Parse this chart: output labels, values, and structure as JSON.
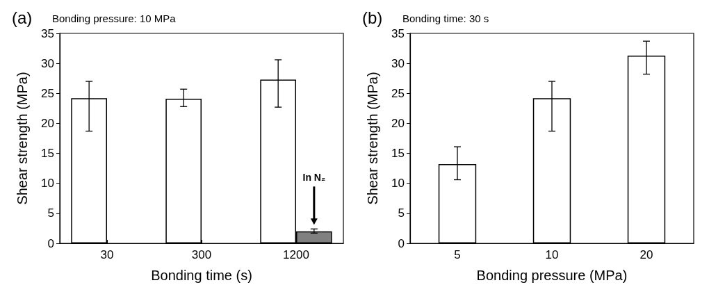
{
  "chart_data": [
    {
      "type": "bar",
      "title": "(a)",
      "subtitle": "Bonding pressure: 10 MPa",
      "xlabel": "Bonding time (s)",
      "ylabel": "Shear strength (MPa)",
      "categories": [
        "30",
        "300",
        "1200"
      ],
      "series": [
        {
          "color": "#ffffff",
          "values": [
            24.2,
            24.1,
            27.3
          ],
          "errors": [
            [
              18.7,
              27.0
            ],
            [
              22.8,
              25.7
            ],
            [
              22.7,
              30.6
            ]
          ]
        },
        {
          "color": "#808080",
          "values": [
            null,
            null,
            2.0
          ],
          "errors": [
            null,
            null,
            [
              1.7,
              2.4
            ]
          ]
        }
      ],
      "ylim": [
        0,
        35
      ],
      "yticks": [
        0,
        5,
        10,
        15,
        20,
        25,
        30,
        35
      ],
      "grid": false,
      "annotations": [
        "In N₂"
      ]
    },
    {
      "type": "bar",
      "title": "(b)",
      "subtitle": "Bonding time: 30 s",
      "xlabel": "Bonding pressure (MPa)",
      "ylabel": "Shear strength (MPa)",
      "categories": [
        "5",
        "10",
        "20"
      ],
      "series": [
        {
          "color": "#ffffff",
          "values": [
            13.2,
            24.2,
            31.3
          ],
          "errors": [
            [
              10.6,
              16.1
            ],
            [
              18.7,
              27.0
            ],
            [
              28.2,
              33.7
            ]
          ]
        }
      ],
      "ylim": [
        0,
        35
      ],
      "yticks": [
        0,
        5,
        10,
        15,
        20,
        25,
        30,
        35
      ],
      "grid": false
    }
  ]
}
